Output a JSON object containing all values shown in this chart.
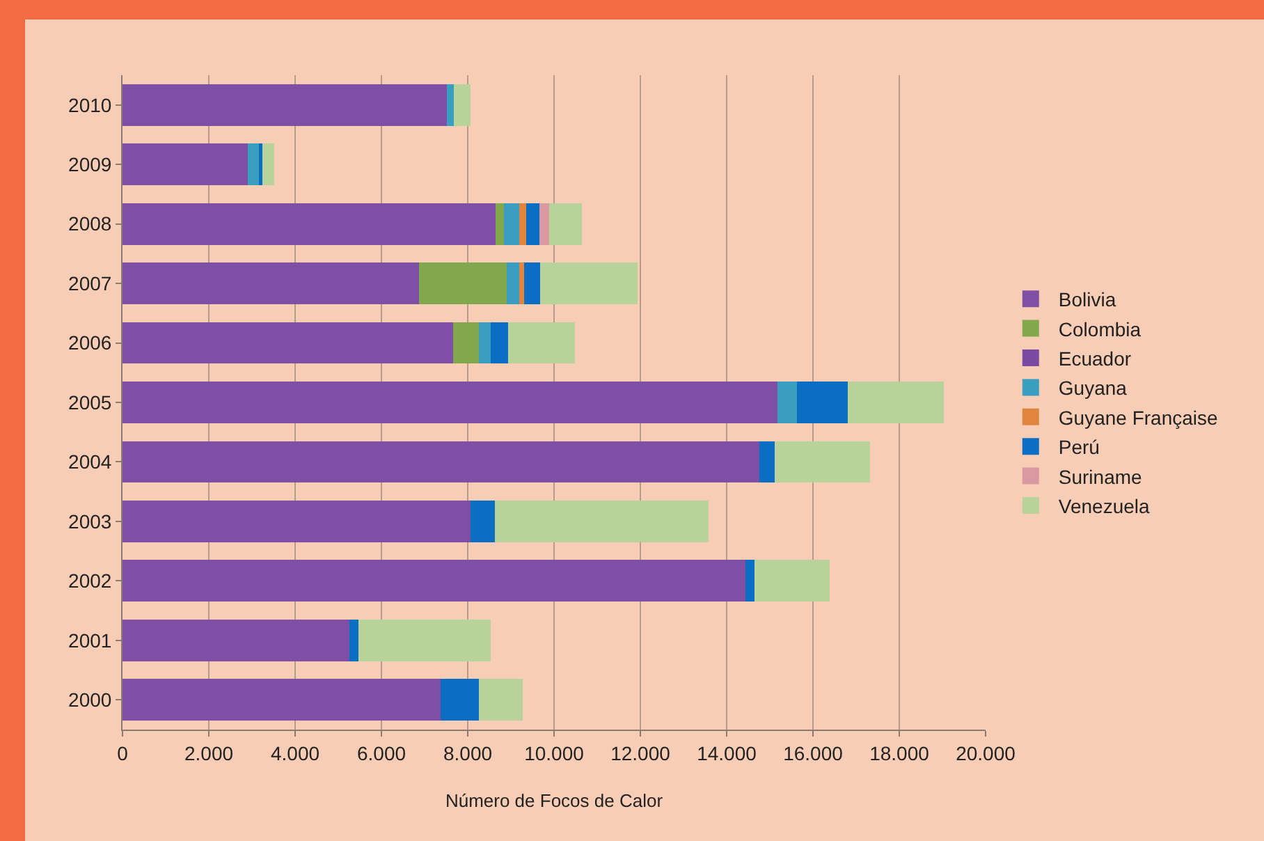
{
  "chart_data": {
    "type": "bar",
    "orientation": "horizontal",
    "stacked": true,
    "xlabel": "Número de Focos de Calor",
    "categories": [
      "2010",
      "2009",
      "2008",
      "2007",
      "2006",
      "2005",
      "2004",
      "2003",
      "2002",
      "2001",
      "2000"
    ],
    "series": [
      {
        "name": "Bolivia",
        "color": "#7e4fa4",
        "values": [
          7520,
          2910,
          8640,
          6870,
          7660,
          15180,
          14760,
          8070,
          14440,
          5260,
          7370
        ]
      },
      {
        "name": "Colombia",
        "color": "#82a84e",
        "values": [
          0,
          0,
          200,
          2040,
          600,
          0,
          0,
          0,
          0,
          0,
          0
        ]
      },
      {
        "name": "Ecuador",
        "color": "#7a4aa3",
        "values": [
          0,
          0,
          0,
          0,
          0,
          0,
          0,
          0,
          0,
          0,
          0
        ]
      },
      {
        "name": "Guyana",
        "color": "#3a9ec0",
        "values": [
          160,
          270,
          360,
          280,
          280,
          450,
          0,
          0,
          0,
          0,
          0
        ]
      },
      {
        "name": "Guyane Française",
        "color": "#e0843e",
        "values": [
          0,
          0,
          160,
          120,
          0,
          0,
          0,
          0,
          0,
          0,
          0
        ]
      },
      {
        "name": "Perú",
        "color": "#0a6fc4",
        "values": [
          0,
          60,
          300,
          360,
          400,
          1180,
          350,
          560,
          210,
          210,
          880
        ]
      },
      {
        "name": "Suriname",
        "color": "#d89aa0",
        "values": [
          0,
          0,
          220,
          0,
          0,
          0,
          0,
          0,
          0,
          0,
          0
        ]
      },
      {
        "name": "Venezuela",
        "color": "#b7d39a",
        "values": [
          390,
          280,
          770,
          2270,
          1540,
          2230,
          2210,
          4950,
          1740,
          3060,
          1020
        ]
      }
    ],
    "xlim": [
      0,
      20000
    ],
    "xticks": [
      0,
      {
        "value": 2000,
        "label": "2.000"
      },
      {
        "value": 4000,
        "label": "4.000"
      },
      {
        "value": 6000,
        "label": "6.000"
      },
      {
        "value": 8000,
        "label": "8.000"
      },
      {
        "value": 10000,
        "label": "10.000"
      },
      {
        "value": 12000,
        "label": "12.000"
      },
      {
        "value": 14000,
        "label": "14.000"
      },
      {
        "value": 16000,
        "label": "16.000"
      },
      {
        "value": 18000,
        "label": "18.000"
      },
      {
        "value": 20000,
        "label": "20.000"
      }
    ],
    "grid": "x",
    "legend": "right"
  }
}
